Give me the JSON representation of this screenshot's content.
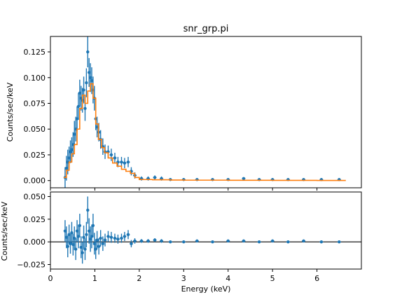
{
  "colors": {
    "data": "#1f77b4",
    "model": "#ff7f0e",
    "zero_line": "#000000"
  },
  "chart_data": [
    {
      "type": "scatter",
      "title": "snr_grp.pi",
      "xlabel": "",
      "ylabel": "Counts/sec/keV",
      "xlim": [
        0,
        7
      ],
      "ylim": [
        -0.007,
        0.14
      ],
      "xticks": [
        0,
        1,
        2,
        3,
        4,
        5,
        6
      ],
      "xtick_labels": [
        "",
        "",
        "",
        "",
        "",
        "",
        ""
      ],
      "yticks": [
        0.0,
        0.025,
        0.05,
        0.075,
        0.1,
        0.125
      ],
      "ytick_labels": [
        "0.000",
        "0.025",
        "0.050",
        "0.075",
        "0.100",
        "0.125"
      ],
      "grid": false,
      "series": [
        {
          "style": "errorbar",
          "points": [
            [
              0.33,
              0.003,
              0.01
            ],
            [
              0.36,
              0.012,
              0.012
            ],
            [
              0.39,
              0.018,
              0.012
            ],
            [
              0.42,
              0.022,
              0.011
            ],
            [
              0.45,
              0.028,
              0.011
            ],
            [
              0.48,
              0.03,
              0.012
            ],
            [
              0.51,
              0.035,
              0.012
            ],
            [
              0.54,
              0.045,
              0.013
            ],
            [
              0.57,
              0.05,
              0.012
            ],
            [
              0.6,
              0.06,
              0.012
            ],
            [
              0.63,
              0.072,
              0.013
            ],
            [
              0.66,
              0.085,
              0.013
            ],
            [
              0.69,
              0.08,
              0.012
            ],
            [
              0.72,
              0.078,
              0.012
            ],
            [
              0.75,
              0.088,
              0.013
            ],
            [
              0.78,
              0.07,
              0.012
            ],
            [
              0.81,
              0.095,
              0.014
            ],
            [
              0.84,
              0.125,
              0.015
            ],
            [
              0.87,
              0.105,
              0.014
            ],
            [
              0.9,
              0.1,
              0.014
            ],
            [
              0.93,
              0.097,
              0.013
            ],
            [
              0.96,
              0.088,
              0.013
            ],
            [
              0.99,
              0.08,
              0.012
            ],
            [
              1.02,
              0.06,
              0.011
            ],
            [
              1.05,
              0.052,
              0.01
            ],
            [
              1.09,
              0.047,
              0.009
            ],
            [
              1.13,
              0.04,
              0.009
            ],
            [
              1.18,
              0.033,
              0.008
            ],
            [
              1.23,
              0.028,
              0.007
            ],
            [
              1.3,
              0.028,
              0.006
            ],
            [
              1.37,
              0.025,
              0.006
            ],
            [
              1.45,
              0.022,
              0.005
            ],
            [
              1.52,
              0.018,
              0.005
            ],
            [
              1.6,
              0.018,
              0.005
            ],
            [
              1.67,
              0.017,
              0.005
            ],
            [
              1.75,
              0.018,
              0.005
            ],
            [
              1.82,
              0.009,
              0.004
            ],
            [
              1.9,
              0.005,
              0.003
            ],
            [
              2.05,
              0.002,
              0.002
            ],
            [
              2.2,
              0.002,
              0.002
            ],
            [
              2.35,
              0.003,
              0.002
            ],
            [
              2.5,
              0.002,
              0.002
            ],
            [
              2.7,
              0.001,
              0.001
            ],
            [
              3.0,
              0.001,
              0.001
            ],
            [
              3.3,
              0.001,
              0.001
            ],
            [
              3.65,
              0.001,
              0.001
            ],
            [
              4.0,
              0.001,
              0.001
            ],
            [
              4.35,
              0.002,
              0.001
            ],
            [
              4.7,
              0.001,
              0.001
            ],
            [
              5.0,
              0.001,
              0.001
            ],
            [
              5.35,
              0.001,
              0.001
            ],
            [
              5.7,
              0.001,
              0.001
            ],
            [
              6.1,
              0.001,
              0.001
            ],
            [
              6.5,
              0.001,
              0.001
            ]
          ]
        },
        {
          "style": "step",
          "x": [
            0.3,
            0.36,
            0.42,
            0.48,
            0.54,
            0.6,
            0.66,
            0.72,
            0.78,
            0.84,
            0.9,
            0.96,
            1.02,
            1.08,
            1.15,
            1.22,
            1.3,
            1.4,
            1.5,
            1.6,
            1.7,
            1.8,
            1.9,
            2.0,
            2.3,
            2.7,
            3.0,
            4.0,
            5.0,
            6.0,
            6.65
          ],
          "y": [
            0.003,
            0.01,
            0.018,
            0.026,
            0.035,
            0.05,
            0.07,
            0.083,
            0.075,
            0.087,
            0.094,
            0.08,
            0.055,
            0.04,
            0.032,
            0.027,
            0.022,
            0.017,
            0.014,
            0.011,
            0.009,
            0.007,
            0.003,
            0.001,
            0.0008,
            0.0005,
            0.0004,
            0.0003,
            0.0002,
            0.0001,
            0.0001
          ]
        }
      ]
    },
    {
      "type": "scatter",
      "title": "",
      "xlabel": "Energy (keV)",
      "ylabel": "Counts/sec/keV",
      "xlim": [
        0,
        7
      ],
      "ylim": [
        -0.03,
        0.055
      ],
      "xticks": [
        0,
        1,
        2,
        3,
        4,
        5,
        6
      ],
      "xtick_labels": [
        "0",
        "1",
        "2",
        "3",
        "4",
        "5",
        "6"
      ],
      "yticks": [
        -0.025,
        0.0,
        0.025,
        0.05
      ],
      "ytick_labels": [
        "−0.025",
        "0.000",
        "0.025",
        "0.050"
      ],
      "grid": false,
      "hline": 0,
      "series": [
        {
          "style": "errorbar",
          "points": [
            [
              0.33,
              0.012,
              0.012
            ],
            [
              0.36,
              0.005,
              0.012
            ],
            [
              0.39,
              -0.005,
              0.012
            ],
            [
              0.42,
              0.008,
              0.011
            ],
            [
              0.45,
              -0.002,
              0.011
            ],
            [
              0.48,
              0.01,
              0.012
            ],
            [
              0.51,
              -0.003,
              0.012
            ],
            [
              0.54,
              0.004,
              0.013
            ],
            [
              0.57,
              -0.008,
              0.012
            ],
            [
              0.6,
              0.012,
              0.012
            ],
            [
              0.63,
              0.006,
              0.013
            ],
            [
              0.66,
              0.018,
              0.013
            ],
            [
              0.69,
              -0.006,
              0.012
            ],
            [
              0.72,
              -0.012,
              0.012
            ],
            [
              0.75,
              0.005,
              0.013
            ],
            [
              0.78,
              -0.008,
              0.012
            ],
            [
              0.81,
              0.008,
              0.014
            ],
            [
              0.84,
              0.035,
              0.015
            ],
            [
              0.87,
              0.012,
              0.014
            ],
            [
              0.9,
              0.003,
              0.014
            ],
            [
              0.93,
              0.006,
              0.013
            ],
            [
              0.96,
              0.018,
              0.013
            ],
            [
              0.99,
              -0.002,
              0.012
            ],
            [
              1.02,
              -0.008,
              0.011
            ],
            [
              1.05,
              0.002,
              0.01
            ],
            [
              1.09,
              -0.005,
              0.009
            ],
            [
              1.13,
              0.004,
              0.009
            ],
            [
              1.18,
              -0.002,
              0.008
            ],
            [
              1.23,
              0.002,
              0.007
            ],
            [
              1.3,
              0.006,
              0.006
            ],
            [
              1.37,
              0.005,
              0.006
            ],
            [
              1.45,
              0.004,
              0.005
            ],
            [
              1.52,
              0.003,
              0.005
            ],
            [
              1.6,
              0.004,
              0.005
            ],
            [
              1.67,
              0.006,
              0.005
            ],
            [
              1.75,
              0.008,
              0.005
            ],
            [
              1.82,
              -0.002,
              0.004
            ],
            [
              1.9,
              0.001,
              0.003
            ],
            [
              2.05,
              0.001,
              0.002
            ],
            [
              2.2,
              0.001,
              0.002
            ],
            [
              2.35,
              0.002,
              0.002
            ],
            [
              2.5,
              0.001,
              0.002
            ],
            [
              2.7,
              0.0,
              0.001
            ],
            [
              3.0,
              0.0,
              0.001
            ],
            [
              3.3,
              0.001,
              0.001
            ],
            [
              3.65,
              0.0,
              0.001
            ],
            [
              4.0,
              0.001,
              0.001
            ],
            [
              4.35,
              0.001,
              0.001
            ],
            [
              4.7,
              0.0,
              0.001
            ],
            [
              5.0,
              0.001,
              0.001
            ],
            [
              5.35,
              0.0,
              0.001
            ],
            [
              5.7,
              0.001,
              0.001
            ],
            [
              6.1,
              0.0,
              0.001
            ],
            [
              6.5,
              0.0,
              0.001
            ]
          ]
        }
      ]
    }
  ]
}
